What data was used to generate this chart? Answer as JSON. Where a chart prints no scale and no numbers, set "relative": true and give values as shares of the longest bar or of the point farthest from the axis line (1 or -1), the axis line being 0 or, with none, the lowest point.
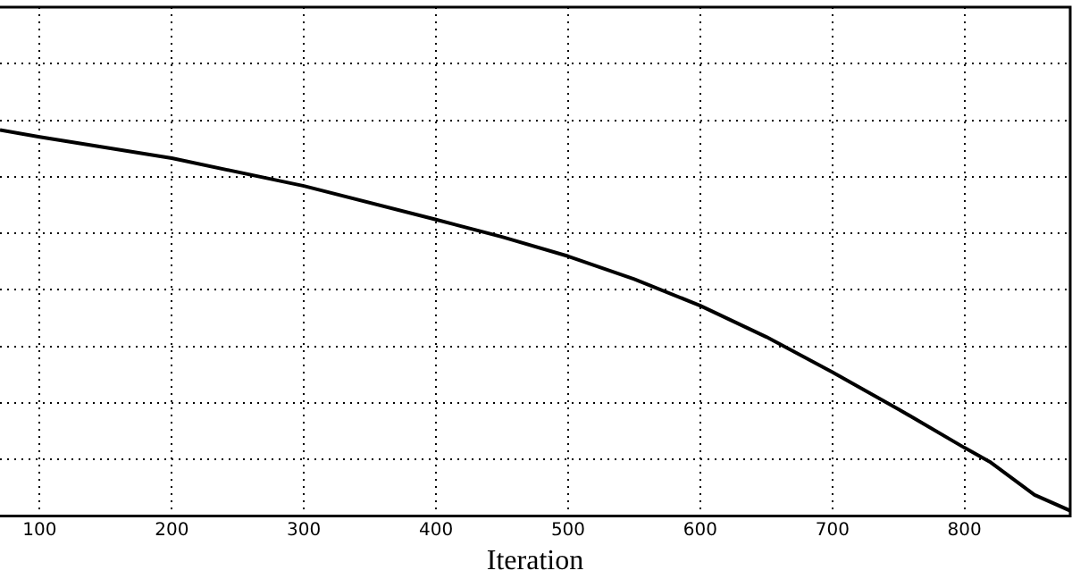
{
  "chart_data": {
    "type": "line",
    "xlabel": "Iteration",
    "relative": true,
    "xlim": [
      70,
      880
    ],
    "xticks": [
      100,
      200,
      300,
      400,
      500,
      600,
      700,
      800
    ],
    "grid": true,
    "legend": false,
    "marker": "none",
    "line_style": "solid",
    "series": [
      {
        "color": "#000000",
        "x": [
          70,
          100,
          200,
          300,
          400,
          450,
          500,
          550,
          600,
          650,
          700,
          750,
          800,
          819,
          853,
          880
        ],
        "values": [
          1.0,
          0.982,
          0.927,
          0.855,
          0.768,
          0.723,
          0.673,
          0.614,
          0.545,
          0.464,
          0.373,
          0.277,
          0.177,
          0.141,
          0.055,
          0.014
        ]
      }
    ]
  }
}
